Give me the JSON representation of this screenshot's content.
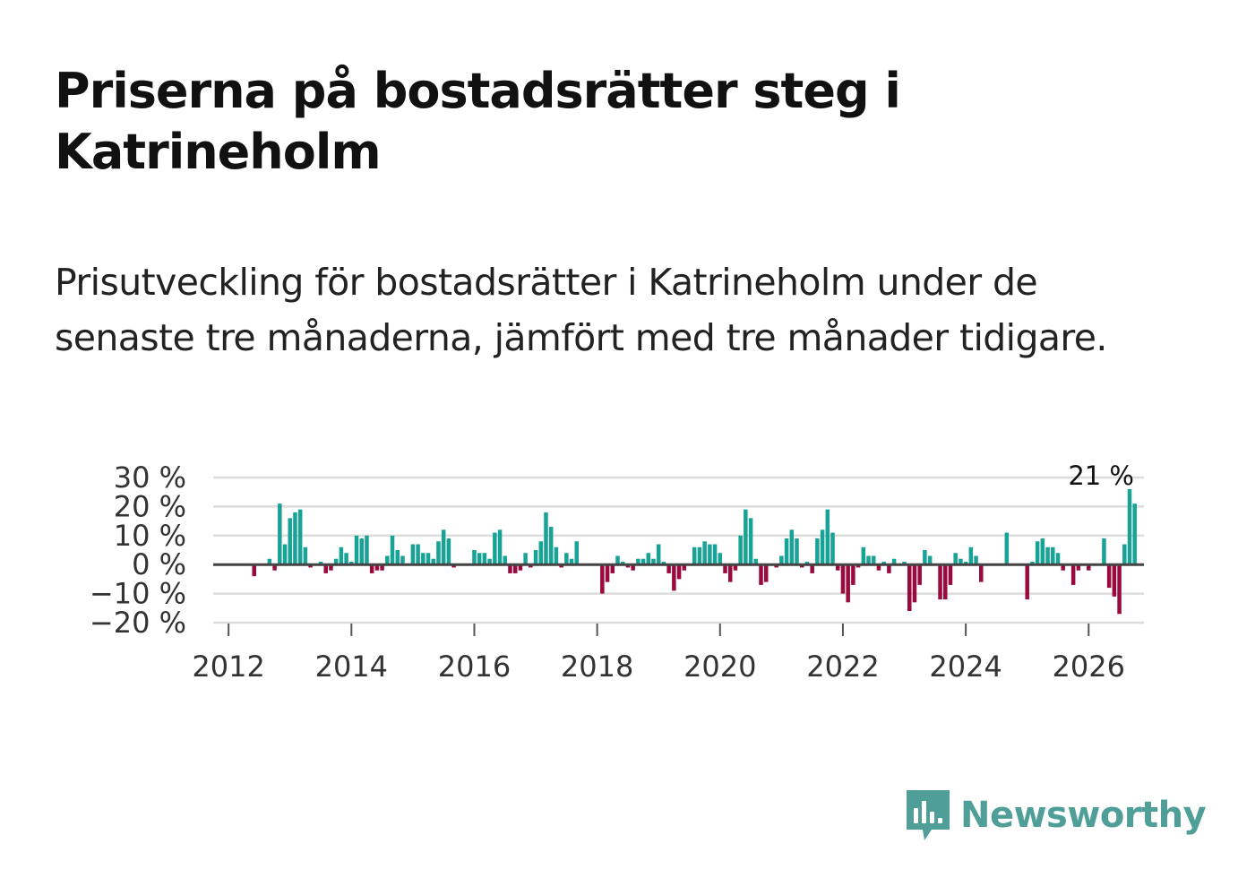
{
  "title": "Priserna på bostadsrätter steg i Katrineholm",
  "subtitle": "Prisutveckling för bostadsrätter i Katrineholm under de senaste tre månaderna, jämfört med tre månader tidigare.",
  "brand": {
    "name": "Newsworthy",
    "icon": "newsworthy-logo-icon",
    "color": "#4f9f98"
  },
  "colors": {
    "positive": "#18a396",
    "negative": "#9b0a3f",
    "grid": "#dddddd",
    "zero": "#444444"
  },
  "chart_data": {
    "type": "bar",
    "title": "Priserna på bostadsrätter steg i Katrineholm",
    "xlabel": "",
    "ylabel": "",
    "unit": "%",
    "start_year": 2012,
    "start_month": 1,
    "xlim": [
      2011.75,
      2026.9
    ],
    "ylim": [
      -20,
      30
    ],
    "yticks": [
      30,
      20,
      10,
      0,
      -10,
      -20
    ],
    "ytick_labels": [
      "30 %",
      "20 %",
      "10 %",
      "0 %",
      "−10 %",
      "−20 %"
    ],
    "xticks": [
      2012,
      2014,
      2016,
      2018,
      2020,
      2022,
      2024,
      2026
    ],
    "xtick_labels": [
      "2012",
      "2014",
      "2016",
      "2018",
      "2020",
      "2022",
      "2024",
      "2026"
    ],
    "grid": true,
    "annotation": {
      "label": "21 %",
      "value": 21,
      "position": "last-bar"
    },
    "values": [
      null,
      null,
      null,
      null,
      null,
      -4,
      null,
      null,
      2,
      -2,
      21,
      7,
      16,
      18,
      19,
      6,
      -1,
      null,
      1,
      -3,
      -2,
      2,
      6,
      4,
      1,
      10,
      9,
      10,
      -3,
      -2,
      -2,
      3,
      10,
      5,
      3,
      null,
      7,
      7,
      4,
      4,
      2,
      8,
      12,
      9,
      -1,
      null,
      null,
      null,
      5,
      4,
      4,
      2,
      11,
      12,
      3,
      -3,
      -3,
      -2,
      4,
      -1,
      5,
      8,
      18,
      13,
      6,
      -1,
      4,
      2,
      8,
      null,
      null,
      null,
      null,
      -10,
      -6,
      -3,
      3,
      1,
      -1,
      -2,
      2,
      2,
      4,
      2,
      7,
      1,
      -3,
      -9,
      -5,
      -2,
      null,
      6,
      6,
      8,
      7,
      7,
      4,
      -3,
      -6,
      -2,
      10,
      19,
      16,
      2,
      -7,
      -6,
      null,
      -1,
      3,
      9,
      12,
      9,
      -1,
      1,
      -3,
      9,
      12,
      19,
      11,
      -2,
      -10,
      -13,
      -7,
      -1,
      6,
      3,
      3,
      -2,
      1,
      -3,
      2,
      null,
      1,
      -16,
      -13,
      -7,
      5,
      3,
      null,
      -12,
      -12,
      -7,
      4,
      2,
      1,
      6,
      3,
      -6,
      null,
      null,
      null,
      null,
      11,
      null,
      null,
      null,
      -12,
      1,
      8,
      9,
      6,
      6,
      4,
      -2,
      null,
      -7,
      -2,
      null,
      -2,
      null,
      null,
      9,
      -8,
      -11,
      -17,
      7,
      26,
      21
    ]
  }
}
